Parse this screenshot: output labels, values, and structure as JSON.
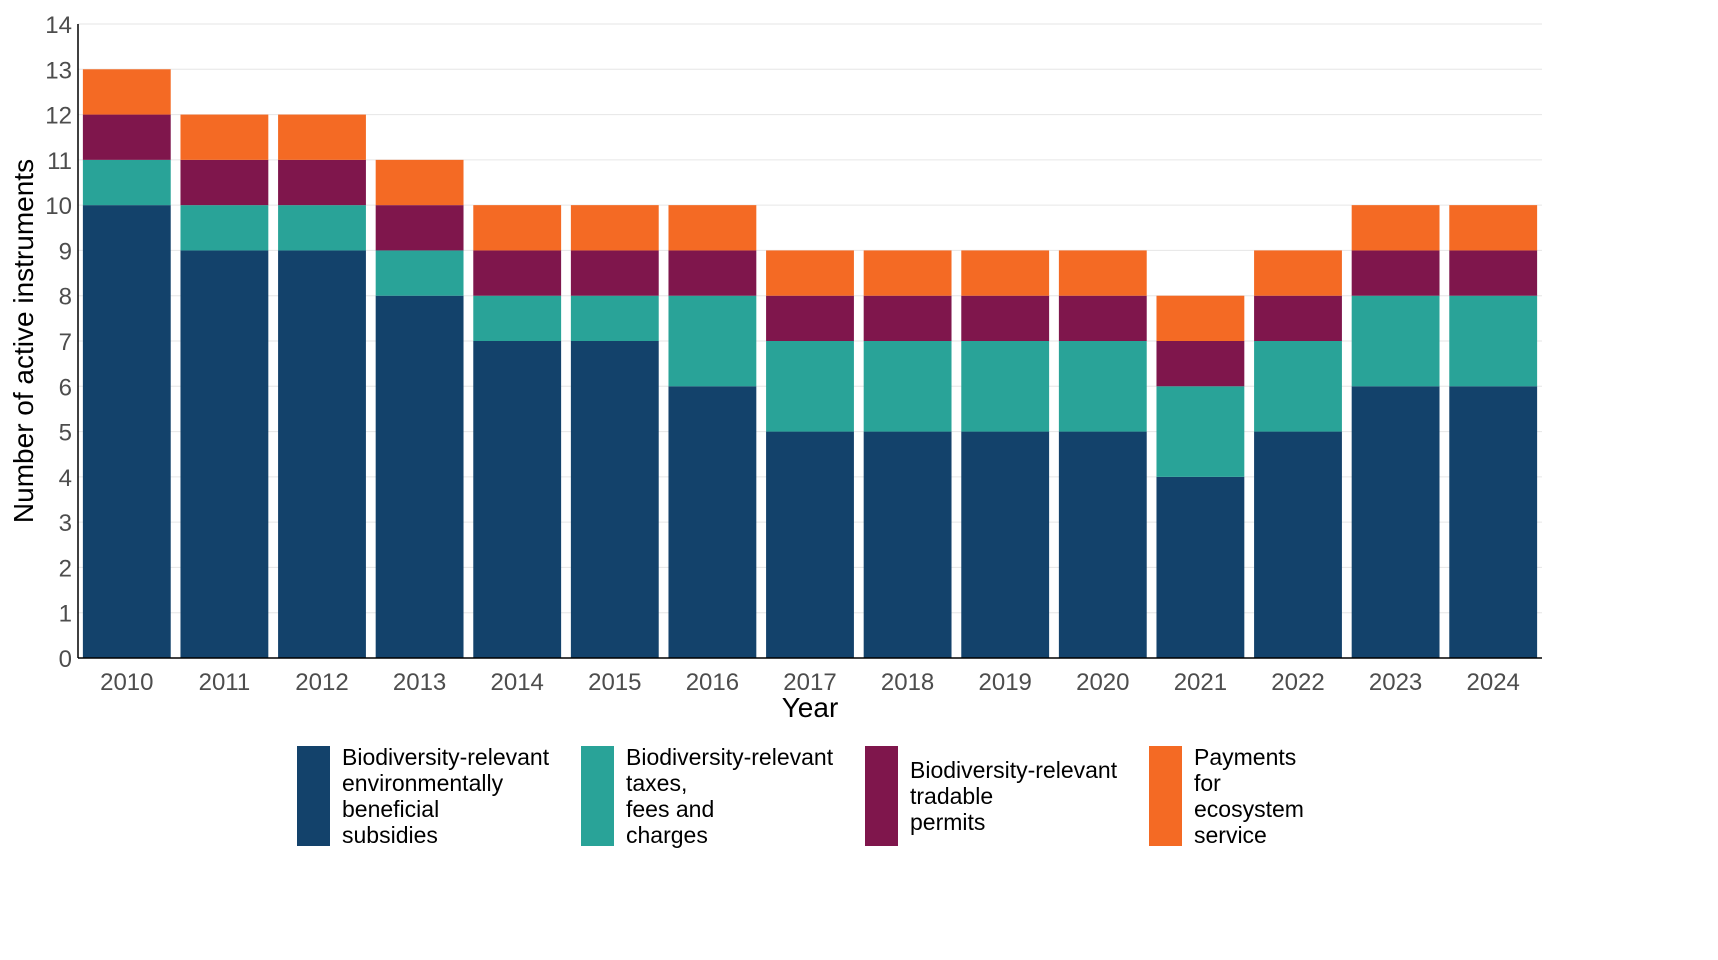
{
  "chart_data": {
    "type": "bar",
    "stacked": true,
    "xlabel": "Year",
    "ylabel": "Number of active instruments",
    "ylim": [
      0,
      14
    ],
    "yticks": [
      "0",
      "1",
      "2",
      "3",
      "4",
      "5",
      "6",
      "7",
      "8",
      "9",
      "10",
      "11",
      "12",
      "13",
      "14"
    ],
    "grid": true,
    "legend_placement": "bottom",
    "categories": [
      "2010",
      "2011",
      "2012",
      "2013",
      "2014",
      "2015",
      "2016",
      "2017",
      "2018",
      "2019",
      "2020",
      "2021",
      "2022",
      "2023",
      "2024"
    ],
    "series": [
      {
        "name": "Biodiversity-relevant\nenvironmentally\nbeneficial\nsubsidies",
        "color": "#13426b",
        "values": [
          10,
          9,
          9,
          8,
          7,
          7,
          6,
          5,
          5,
          5,
          5,
          4,
          5,
          6,
          6
        ]
      },
      {
        "name": "Biodiversity-relevant\ntaxes,\nfees and\ncharges",
        "color": "#29a398",
        "values": [
          1,
          1,
          1,
          1,
          1,
          1,
          2,
          2,
          2,
          2,
          2,
          2,
          2,
          2,
          2
        ]
      },
      {
        "name": "Biodiversity-relevant\ntradable\npermits",
        "color": "#7f164c",
        "values": [
          1,
          1,
          1,
          1,
          1,
          1,
          1,
          1,
          1,
          1,
          1,
          1,
          1,
          1,
          1
        ]
      },
      {
        "name": "Payments\nfor\necosystem\nservice",
        "color": "#f46a24",
        "values": [
          1,
          1,
          1,
          1,
          1,
          1,
          1,
          1,
          1,
          1,
          1,
          1,
          1,
          1,
          1
        ]
      }
    ]
  }
}
